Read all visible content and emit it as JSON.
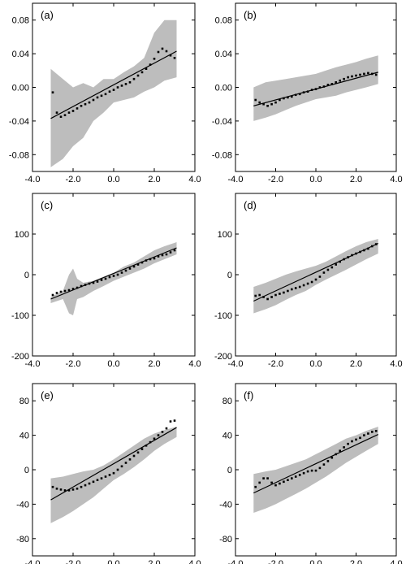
{
  "chart_data": [
    {
      "type": "scatter",
      "panel_label": "(a)",
      "xlim": [
        -4.0,
        4.0
      ],
      "ylim": [
        -0.1,
        0.1
      ],
      "xticks": [
        "-4.0",
        "-2.0",
        "0.0",
        "2.0",
        "4.0"
      ],
      "yticks": [
        0.08,
        0.04,
        0.0,
        -0.04,
        -0.08
      ],
      "ytick_labels": [
        "0.08",
        "0.04",
        "0.00",
        "-0.04",
        "-0.08"
      ],
      "band": {
        "x": [
          -3.1,
          -2.5,
          -2.0,
          -1.5,
          -1.0,
          -0.5,
          0.0,
          0.5,
          1.0,
          1.5,
          2.0,
          2.5,
          3.1
        ],
        "upper": [
          0.022,
          0.01,
          0.0,
          0.005,
          0.0,
          0.01,
          0.01,
          0.018,
          0.025,
          0.035,
          0.065,
          0.08,
          0.08
        ],
        "lower": [
          -0.095,
          -0.085,
          -0.07,
          -0.06,
          -0.04,
          -0.03,
          -0.018,
          -0.015,
          -0.012,
          -0.005,
          0.0,
          0.008,
          0.012
        ]
      },
      "fit_line": {
        "x": [
          -3.1,
          3.1
        ],
        "y": [
          -0.037,
          0.043
        ]
      },
      "points": {
        "x": [
          -3.0,
          -2.8,
          -2.6,
          -2.4,
          -2.2,
          -2.0,
          -1.8,
          -1.6,
          -1.4,
          -1.2,
          -1.0,
          -0.8,
          -0.6,
          -0.4,
          -0.2,
          0.0,
          0.2,
          0.4,
          0.6,
          0.8,
          1.0,
          1.2,
          1.4,
          1.6,
          1.8,
          2.0,
          2.2,
          2.4,
          2.6,
          2.8,
          3.0
        ],
        "y": [
          -0.006,
          -0.03,
          -0.035,
          -0.033,
          -0.03,
          -0.028,
          -0.025,
          -0.022,
          -0.02,
          -0.018,
          -0.015,
          -0.012,
          -0.01,
          -0.008,
          -0.005,
          -0.003,
          0.0,
          0.002,
          0.004,
          0.006,
          0.01,
          0.014,
          0.018,
          0.022,
          0.027,
          0.034,
          0.042,
          0.046,
          0.043,
          0.038,
          0.035
        ]
      }
    },
    {
      "type": "scatter",
      "panel_label": "(b)",
      "xlim": [
        -4.0,
        4.0
      ],
      "ylim": [
        -0.1,
        0.1
      ],
      "xticks": [
        "-4.0",
        "-2.0",
        "0.0",
        "2.0",
        "4.0"
      ],
      "yticks": [
        0.08,
        0.04,
        0.0,
        -0.04,
        -0.08
      ],
      "ytick_labels": [
        "0.08",
        "0.04",
        "0.00",
        "-0.04",
        "-0.08"
      ],
      "band": {
        "x": [
          -3.1,
          -2.5,
          -2.0,
          -1.5,
          -1.0,
          -0.5,
          0.0,
          0.5,
          1.0,
          1.5,
          2.0,
          2.5,
          3.1
        ],
        "upper": [
          0.0,
          0.006,
          0.008,
          0.01,
          0.012,
          0.014,
          0.016,
          0.02,
          0.024,
          0.027,
          0.03,
          0.034,
          0.038
        ],
        "lower": [
          -0.04,
          -0.036,
          -0.032,
          -0.027,
          -0.022,
          -0.018,
          -0.014,
          -0.012,
          -0.01,
          -0.006,
          -0.003,
          0.0,
          0.004
        ]
      },
      "fit_line": {
        "x": [
          -3.1,
          3.1
        ],
        "y": [
          -0.022,
          0.018
        ]
      },
      "points": {
        "x": [
          -3.0,
          -2.8,
          -2.6,
          -2.4,
          -2.2,
          -2.0,
          -1.8,
          -1.6,
          -1.4,
          -1.2,
          -1.0,
          -0.8,
          -0.6,
          -0.4,
          -0.2,
          0.0,
          0.2,
          0.4,
          0.6,
          0.8,
          1.0,
          1.2,
          1.4,
          1.6,
          1.8,
          2.0,
          2.2,
          2.4,
          2.6,
          2.8,
          3.0
        ],
        "y": [
          -0.015,
          -0.018,
          -0.02,
          -0.022,
          -0.02,
          -0.018,
          -0.015,
          -0.013,
          -0.012,
          -0.011,
          -0.009,
          -0.008,
          -0.006,
          -0.005,
          -0.003,
          -0.002,
          0.0,
          0.001,
          0.003,
          0.004,
          0.006,
          0.008,
          0.01,
          0.012,
          0.013,
          0.014,
          0.015,
          0.016,
          0.017,
          0.016,
          0.015
        ]
      }
    },
    {
      "type": "scatter",
      "panel_label": "(c)",
      "xlim": [
        -4.0,
        4.0
      ],
      "ylim": [
        -200,
        200
      ],
      "xticks": [
        "-4.0",
        "-2.0",
        "0.0",
        "2.0",
        "4.0"
      ],
      "yticks": [
        100,
        0,
        -100,
        -200
      ],
      "ytick_labels": [
        "100",
        "0",
        "-100",
        "-200"
      ],
      "band": {
        "x": [
          -3.1,
          -2.5,
          -2.2,
          -2.0,
          -1.8,
          -1.5,
          -1.0,
          -0.5,
          0.0,
          0.5,
          1.0,
          1.5,
          2.0,
          2.5,
          3.1
        ],
        "upper": [
          -55,
          -40,
          0,
          15,
          -10,
          -20,
          -15,
          -5,
          5,
          20,
          30,
          45,
          60,
          70,
          80
        ],
        "lower": [
          -70,
          -60,
          -95,
          -100,
          -60,
          -55,
          -40,
          -28,
          -15,
          -5,
          5,
          15,
          28,
          38,
          50
        ]
      },
      "fit_line": {
        "x": [
          -3.1,
          3.1
        ],
        "y": [
          -60,
          66
        ]
      },
      "points": {
        "x": [
          -3.0,
          -2.8,
          -2.6,
          -2.4,
          -2.2,
          -2.0,
          -1.8,
          -1.6,
          -1.4,
          -1.2,
          -1.0,
          -0.8,
          -0.6,
          -0.4,
          -0.2,
          0.0,
          0.2,
          0.4,
          0.6,
          0.8,
          1.0,
          1.2,
          1.4,
          1.6,
          1.8,
          2.0,
          2.2,
          2.4,
          2.6,
          2.8,
          3.0
        ],
        "y": [
          -50,
          -45,
          -42,
          -40,
          -38,
          -35,
          -32,
          -28,
          -25,
          -22,
          -20,
          -17,
          -13,
          -10,
          -6,
          -3,
          0,
          5,
          10,
          15,
          20,
          25,
          30,
          35,
          38,
          40,
          45,
          48,
          50,
          55,
          60
        ]
      }
    },
    {
      "type": "scatter",
      "panel_label": "(d)",
      "xlim": [
        -4.0,
        4.0
      ],
      "ylim": [
        -200,
        200
      ],
      "xticks": [
        "-4.0",
        "-2.0",
        "0.0",
        "2.0",
        "4.0"
      ],
      "yticks": [
        100,
        0,
        -100,
        -200
      ],
      "ytick_labels": [
        "100",
        "0",
        "-100",
        "-200"
      ],
      "band": {
        "x": [
          -3.1,
          -2.5,
          -2.0,
          -1.5,
          -1.0,
          -0.5,
          0.0,
          0.5,
          1.0,
          1.5,
          2.0,
          2.5,
          3.1
        ],
        "upper": [
          -30,
          -20,
          -10,
          0,
          8,
          15,
          22,
          32,
          45,
          58,
          70,
          80,
          88
        ],
        "lower": [
          -95,
          -85,
          -75,
          -62,
          -50,
          -40,
          -25,
          -12,
          0,
          12,
          25,
          38,
          52
        ]
      },
      "fit_line": {
        "x": [
          -3.1,
          3.1
        ],
        "y": [
          -65,
          77
        ]
      },
      "points": {
        "x": [
          -3.0,
          -2.8,
          -2.6,
          -2.4,
          -2.2,
          -2.0,
          -1.8,
          -1.6,
          -1.4,
          -1.2,
          -1.0,
          -0.8,
          -0.6,
          -0.4,
          -0.2,
          0.0,
          0.2,
          0.4,
          0.6,
          0.8,
          1.0,
          1.2,
          1.4,
          1.6,
          1.8,
          2.0,
          2.2,
          2.4,
          2.6,
          2.8,
          3.0
        ],
        "y": [
          -52,
          -50,
          -55,
          -60,
          -55,
          -50,
          -47,
          -44,
          -40,
          -36,
          -33,
          -30,
          -26,
          -22,
          -18,
          -12,
          -5,
          5,
          12,
          18,
          25,
          32,
          38,
          43,
          48,
          52,
          56,
          60,
          64,
          70,
          75
        ]
      }
    },
    {
      "type": "scatter",
      "panel_label": "(e)",
      "xlim": [
        -4.0,
        4.0
      ],
      "ylim": [
        -100,
        100
      ],
      "xticks": [
        "-4.0",
        "-2.0",
        "0.0",
        "2.0",
        "4.0"
      ],
      "yticks": [
        80,
        40,
        0,
        -40,
        -80
      ],
      "ytick_labels": [
        "80",
        "40",
        "0",
        "-40",
        "-80"
      ],
      "band": {
        "x": [
          -3.1,
          -2.5,
          -2.0,
          -1.5,
          -1.0,
          -0.5,
          0.0,
          0.5,
          1.0,
          1.5,
          2.0,
          2.5,
          3.1
        ],
        "upper": [
          -10,
          -8,
          -5,
          -2,
          0,
          5,
          12,
          20,
          28,
          36,
          42,
          46,
          50
        ],
        "lower": [
          -62,
          -55,
          -48,
          -40,
          -32,
          -22,
          -12,
          -5,
          3,
          12,
          22,
          30,
          38
        ]
      },
      "fit_line": {
        "x": [
          -3.1,
          3.1
        ],
        "y": [
          -35,
          49
        ]
      },
      "points": {
        "x": [
          -3.0,
          -2.8,
          -2.6,
          -2.4,
          -2.2,
          -2.0,
          -1.8,
          -1.6,
          -1.4,
          -1.2,
          -1.0,
          -0.8,
          -0.6,
          -0.4,
          -0.2,
          0.0,
          0.2,
          0.4,
          0.6,
          0.8,
          1.0,
          1.2,
          1.4,
          1.6,
          1.8,
          2.0,
          2.2,
          2.4,
          2.6,
          2.8,
          3.0
        ],
        "y": [
          -20,
          -22,
          -23,
          -24,
          -24,
          -23,
          -22,
          -20,
          -18,
          -16,
          -14,
          -12,
          -10,
          -8,
          -6,
          -4,
          0,
          4,
          8,
          12,
          16,
          20,
          24,
          28,
          32,
          36,
          40,
          44,
          48,
          56,
          57
        ]
      }
    },
    {
      "type": "scatter",
      "panel_label": "(f)",
      "xlim": [
        -4.0,
        4.0
      ],
      "ylim": [
        -100,
        100
      ],
      "xticks": [
        "-4.0",
        "-2.0",
        "0.0",
        "2.0",
        "4.0"
      ],
      "yticks": [
        80,
        40,
        0,
        -40,
        -80
      ],
      "ytick_labels": [
        "80",
        "40",
        "0",
        "-40",
        "-80"
      ],
      "band": {
        "x": [
          -3.1,
          -2.5,
          -2.0,
          -1.5,
          -1.0,
          -0.5,
          0.0,
          0.5,
          1.0,
          1.5,
          2.0,
          2.5,
          3.1
        ],
        "upper": [
          -5,
          -2,
          0,
          4,
          8,
          12,
          18,
          24,
          30,
          36,
          40,
          45,
          50
        ],
        "lower": [
          -50,
          -45,
          -40,
          -34,
          -28,
          -22,
          -15,
          -8,
          0,
          8,
          15,
          22,
          30
        ]
      },
      "fit_line": {
        "x": [
          -3.1,
          3.1
        ],
        "y": [
          -27,
          41
        ]
      },
      "points": {
        "x": [
          -3.0,
          -2.8,
          -2.6,
          -2.4,
          -2.2,
          -2.0,
          -1.8,
          -1.6,
          -1.4,
          -1.2,
          -1.0,
          -0.8,
          -0.6,
          -0.4,
          -0.2,
          0.0,
          0.2,
          0.4,
          0.6,
          0.8,
          1.0,
          1.2,
          1.4,
          1.6,
          1.8,
          2.0,
          2.2,
          2.4,
          2.6,
          2.8,
          3.0
        ],
        "y": [
          -20,
          -15,
          -10,
          -10,
          -15,
          -18,
          -16,
          -14,
          -12,
          -10,
          -8,
          -6,
          -4,
          -2,
          -1,
          -1,
          2,
          6,
          10,
          14,
          18,
          22,
          26,
          30,
          33,
          35,
          37,
          40,
          42,
          44,
          45
        ]
      }
    }
  ]
}
